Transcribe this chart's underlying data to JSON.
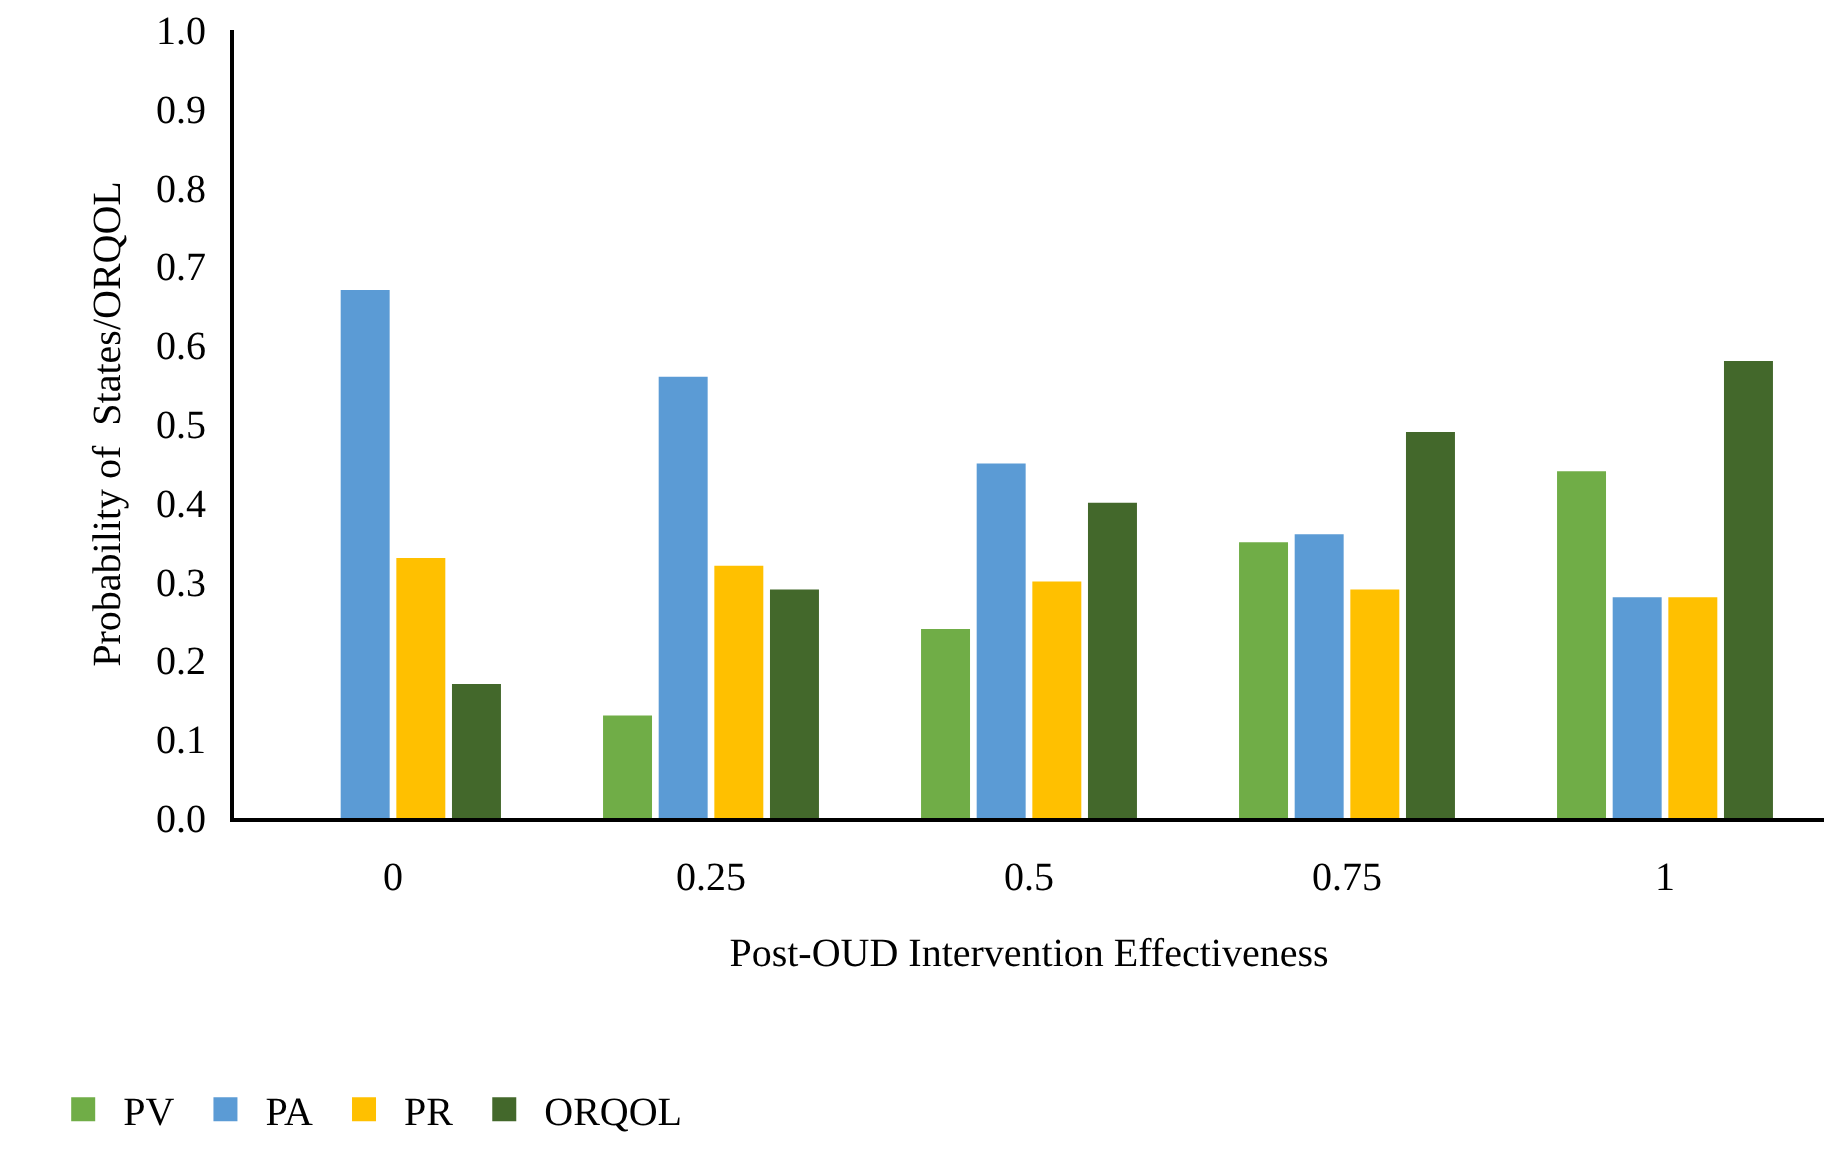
{
  "chart_data": {
    "type": "bar",
    "xlabel": "Post-OUD Intervention Effectiveness",
    "ylabel": "Probability of  States/ORQOL",
    "categories": [
      "0",
      "0.25",
      "0.5",
      "0.75",
      "1"
    ],
    "series": [
      {
        "name": "PV",
        "color": "#70ad47",
        "values": [
          0,
          0.13,
          0.24,
          0.35,
          0.44
        ]
      },
      {
        "name": "PA",
        "color": "#5b9bd5",
        "values": [
          0.67,
          0.56,
          0.45,
          0.36,
          0.28
        ]
      },
      {
        "name": "PR",
        "color": "#ffc000",
        "values": [
          0.33,
          0.32,
          0.3,
          0.29,
          0.28
        ]
      },
      {
        "name": "ORQOL",
        "color": "#43682b",
        "values": [
          0.17,
          0.29,
          0.4,
          0.49,
          0.58
        ]
      }
    ],
    "ylim": [
      0,
      1
    ],
    "yticks": [
      {
        "value": 0,
        "label": "0.0"
      },
      0.1,
      0.2,
      0.3,
      0.4,
      0.5,
      0.6,
      0.7,
      0.8,
      0.9,
      {
        "value": 1,
        "label": "1.0"
      }
    ],
    "grid": false,
    "legend": "bottom left"
  }
}
